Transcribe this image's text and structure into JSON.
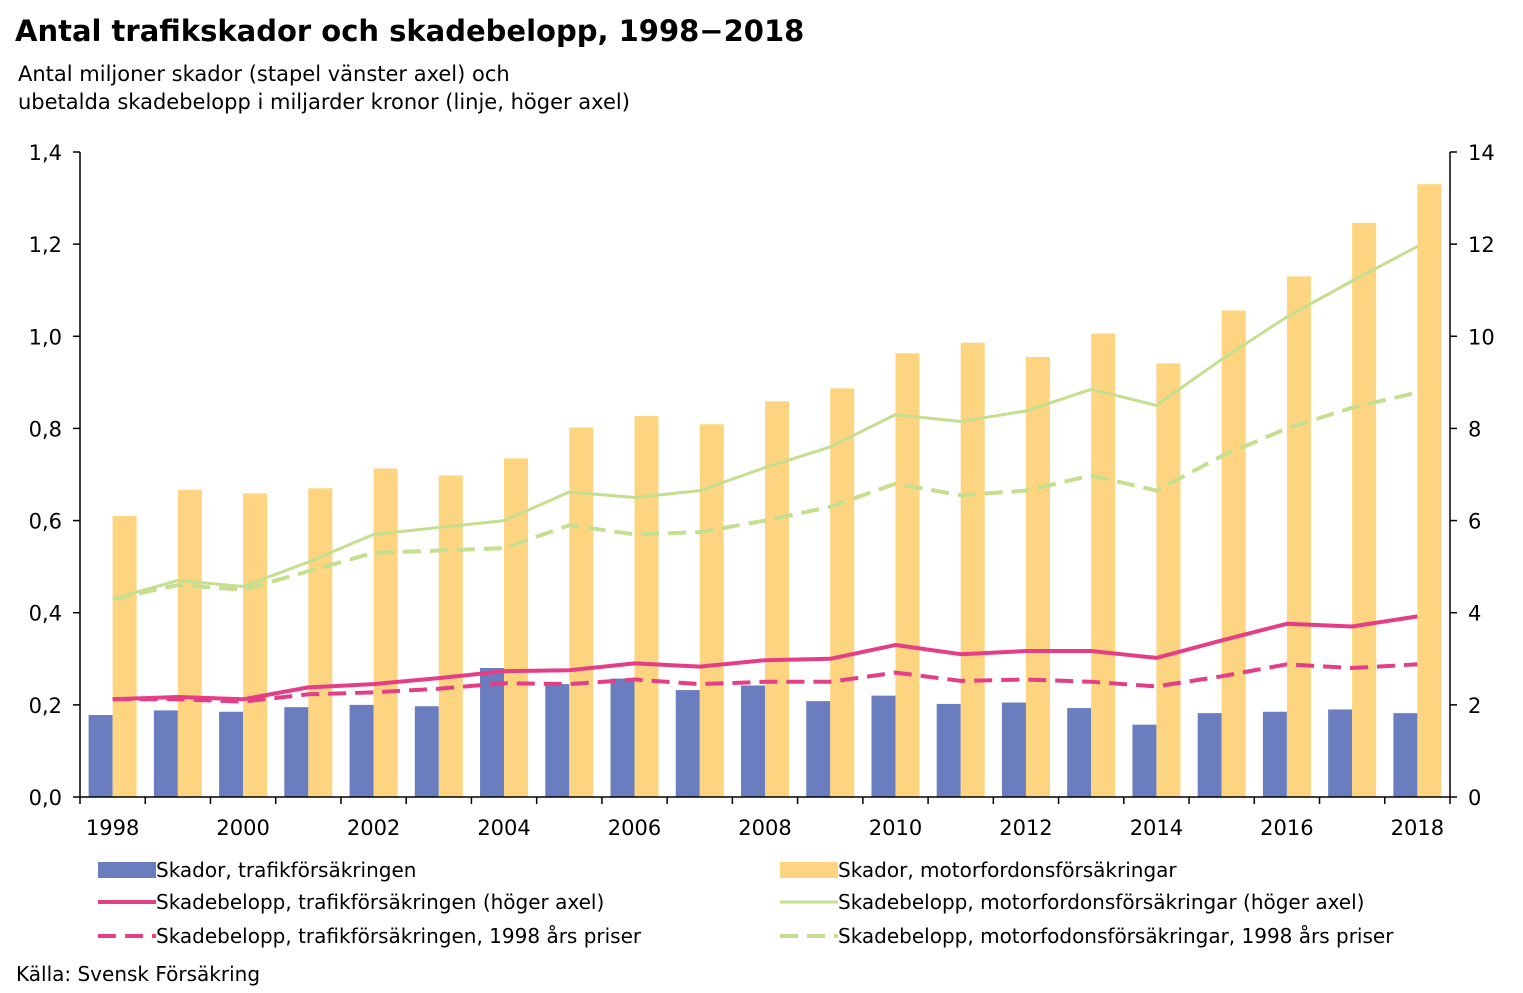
{
  "title": "Antal trafikskador  och skadebelopp, 1998−2018",
  "subtitle_lines": [
    "Antal miljoner skador (stapel vänster axel) och",
    "ubetalda skadebelopp i miljarder kronor (linje, höger axel)"
  ],
  "source": "Källa: Svensk Försäkring",
  "colors": {
    "bar_traffic": "#6A7DBF",
    "bar_motor": "#FDD47F",
    "line_traffic": "#E33E86",
    "line_motor": "#C5DE8F"
  },
  "chart_data": {
    "type": "bar",
    "categories": [
      "1998",
      "1999",
      "2000",
      "2001",
      "2002",
      "2003",
      "2004",
      "2005",
      "2006",
      "2007",
      "2008",
      "2009",
      "2010",
      "2011",
      "2012",
      "2013",
      "2014",
      "2015",
      "2016",
      "2017",
      "2018"
    ],
    "x_tick_labels": [
      "1998",
      "2000",
      "2002",
      "2004",
      "2006",
      "2008",
      "2010",
      "2012",
      "2014",
      "2016",
      "2018"
    ],
    "y_left": {
      "ylim": [
        0,
        1.4
      ],
      "ticks": [
        "0,0",
        "0,2",
        "0,4",
        "0,6",
        "0,8",
        "1,0",
        "1,2",
        "1,4"
      ]
    },
    "y_right": {
      "ylim": [
        0,
        14
      ],
      "ticks": [
        "0",
        "2",
        "4",
        "6",
        "8",
        "10",
        "12",
        "14"
      ]
    },
    "grid": false,
    "series": [
      {
        "name": "Skador, trafikförsäkringen",
        "kind": "bar",
        "axis": "left",
        "values": [
          0.178,
          0.188,
          0.185,
          0.195,
          0.2,
          0.197,
          0.28,
          0.245,
          0.257,
          0.232,
          0.242,
          0.208,
          0.22,
          0.202,
          0.205,
          0.193,
          0.157,
          0.182,
          0.185,
          0.19,
          0.182
        ]
      },
      {
        "name": "Skador, motorfordonsförsäkringar",
        "kind": "bar",
        "axis": "left",
        "values": [
          0.61,
          0.667,
          0.659,
          0.67,
          0.713,
          0.698,
          0.735,
          0.802,
          0.827,
          0.809,
          0.859,
          0.887,
          0.963,
          0.986,
          0.955,
          1.006,
          0.941,
          1.056,
          1.13,
          1.246,
          1.33
        ]
      },
      {
        "name": "Skadebelopp, trafikförsäkringen (höger axel)",
        "kind": "line",
        "axis": "right",
        "dashed": false,
        "values": [
          2.12,
          2.17,
          2.12,
          2.38,
          2.45,
          2.58,
          2.73,
          2.75,
          2.9,
          2.83,
          2.97,
          3.0,
          3.3,
          3.1,
          3.17,
          3.17,
          3.02,
          3.4,
          3.76,
          3.7,
          3.92
        ]
      },
      {
        "name": "Skadebelopp, motorfordonsförsäkringar (höger axel)",
        "kind": "line",
        "axis": "right",
        "dashed": false,
        "values": [
          4.3,
          4.7,
          4.57,
          5.1,
          5.7,
          5.85,
          6.0,
          6.62,
          6.5,
          6.65,
          7.15,
          7.6,
          8.3,
          8.15,
          8.38,
          8.85,
          8.5,
          9.5,
          10.42,
          11.2,
          11.95
        ]
      },
      {
        "name": "Skadebelopp, trafikförsäkringen, 1998 års priser",
        "kind": "line",
        "axis": "right",
        "dashed": true,
        "values": [
          2.12,
          2.12,
          2.07,
          2.23,
          2.27,
          2.35,
          2.47,
          2.45,
          2.55,
          2.45,
          2.5,
          2.5,
          2.7,
          2.52,
          2.55,
          2.5,
          2.4,
          2.62,
          2.88,
          2.8,
          2.88
        ]
      },
      {
        "name": "Skadebelopp, motorfodonsförsäkringar, 1998 års priser",
        "kind": "line",
        "axis": "right",
        "dashed": true,
        "values": [
          4.3,
          4.6,
          4.5,
          4.9,
          5.3,
          5.35,
          5.4,
          5.9,
          5.7,
          5.75,
          6.0,
          6.3,
          6.8,
          6.55,
          6.65,
          6.98,
          6.65,
          7.4,
          8.0,
          8.45,
          8.78
        ]
      }
    ]
  }
}
